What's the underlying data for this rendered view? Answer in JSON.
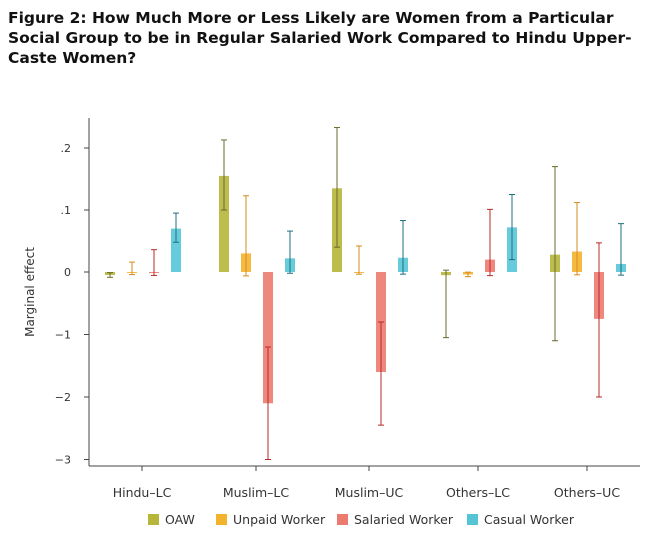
{
  "title": "Figure 2: How Much More or Less Likely are Women from a Particular Social Group to be in Regular Salaried Work Compared to Hindu Upper-Caste Women?",
  "chart_data": {
    "type": "bar",
    "title": "Figure 2: How Much More or Less Likely are Women from a Particular Social Group to be in Regular Salaried Work Compared to Hindu Upper-Caste Women?",
    "xlabel": "",
    "ylabel": "Marginal effect",
    "ylim": [
      -3.2,
      0.25
    ],
    "grid": false,
    "legend_position": "bottom",
    "categories": [
      "Hindu–LC",
      "Muslim–LC",
      "Muslim–UC",
      "Others–LC",
      "Others–UC"
    ],
    "y_ticks": [
      {
        "value": 0.2,
        "label": ".2"
      },
      {
        "value": 0.1,
        "label": ".1"
      },
      {
        "value": 0,
        "label": "0"
      },
      {
        "value": -1,
        "label": "−1"
      },
      {
        "value": -2,
        "label": "−2"
      },
      {
        "value": -3,
        "label": "−3"
      }
    ],
    "series": [
      {
        "name": "OAW",
        "color": "#b5b63a",
        "whisker_color": "#6b6a2a",
        "values": [
          -0.048,
          0.155,
          0.135,
          -0.05,
          0.028
        ],
        "ci_low": [
          -0.085,
          0.1,
          0.04,
          -1.05,
          -1.1
        ],
        "ci_high": [
          -0.01,
          0.213,
          0.233,
          0.003,
          0.17
        ]
      },
      {
        "name": "Unpaid Worker",
        "color": "#f4b32c",
        "whisker_color": "#d98a1f",
        "values": [
          -0.012,
          0.03,
          0.0,
          -0.04,
          0.033
        ],
        "ci_low": [
          -0.042,
          -0.062,
          -0.035,
          -0.075,
          -0.045
        ],
        "ci_high": [
          0.016,
          0.123,
          0.042,
          -0.002,
          0.112
        ]
      },
      {
        "name": "Salaried Worker",
        "color": "#ec7b6f",
        "whisker_color": "#b92a2a",
        "values": [
          -0.01,
          -2.1,
          -1.6,
          0.02,
          -0.75
        ],
        "ci_low": [
          -0.055,
          -3.0,
          -2.45,
          -0.058,
          -2.0
        ],
        "ci_high": [
          0.036,
          -1.2,
          -0.8,
          0.101,
          0.047
        ]
      },
      {
        "name": "Casual Worker",
        "color": "#55c5d6",
        "whisker_color": "#1d6f80",
        "values": [
          0.07,
          0.022,
          0.023,
          0.072,
          0.013
        ],
        "ci_low": [
          0.048,
          -0.02,
          -0.034,
          0.02,
          -0.05
        ],
        "ci_high": [
          0.095,
          0.066,
          0.083,
          0.125,
          0.078
        ]
      }
    ]
  }
}
